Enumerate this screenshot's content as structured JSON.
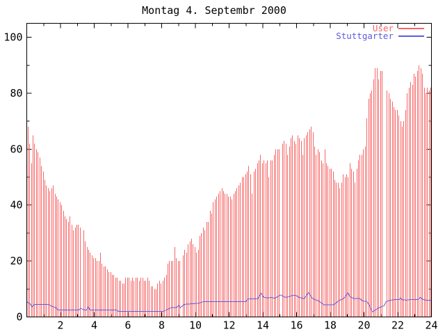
{
  "title": "Montag 4. Septembr 2000",
  "colors": {
    "background": "#ffffff",
    "axis": "#000000",
    "user_red": "#f56666",
    "stuttgarter_blue": "#5c5ce0"
  },
  "legend": {
    "items": [
      {
        "label": "User",
        "color": "#f56666"
      },
      {
        "label": "Stuttgarter",
        "color": "#5c5ce0"
      }
    ]
  },
  "chart_data": {
    "type": "bar",
    "title": "Montag 4. Septembr 2000",
    "xlabel": "",
    "ylabel": "",
    "xlim": [
      0,
      24
    ],
    "ylim": [
      0,
      105
    ],
    "xticks_major": [
      2,
      4,
      6,
      8,
      10,
      12,
      14,
      16,
      18,
      20,
      22,
      24
    ],
    "xticks_minor_step": 1,
    "yticks_major": [
      0,
      20,
      40,
      60,
      80,
      100
    ],
    "yticks_minor_step": 10,
    "grid": false,
    "legend_position": "top-right-inside",
    "series": [
      {
        "name": "User",
        "type": "impulses",
        "color": "#f56666",
        "start_hour": 0.05,
        "step_hours": 0.1,
        "values": [
          68,
          62,
          55,
          65,
          62,
          60,
          59,
          57,
          54,
          52,
          49,
          47,
          46,
          45,
          46,
          47,
          44,
          43,
          42,
          41,
          40,
          38,
          36,
          35,
          34,
          36,
          33,
          31,
          32,
          33,
          33,
          32,
          null,
          31,
          27,
          25,
          24,
          23,
          22,
          21,
          21,
          20,
          20,
          23,
          19,
          18,
          18,
          17,
          16,
          16,
          15,
          15,
          14,
          14,
          13,
          13,
          12,
          12,
          14,
          14,
          14,
          13,
          14,
          13,
          14,
          14,
          13,
          14,
          14,
          13,
          13,
          14,
          13,
          11,
          11,
          10,
          10,
          12,
          13,
          12,
          13,
          14,
          15,
          19,
          20,
          20,
          20,
          25,
          21,
          20,
          20,
          null,
          22,
          24,
          23,
          26,
          27,
          28,
          26,
          25,
          23,
          24,
          29,
          30,
          32,
          31,
          34,
          34,
          38,
          37,
          41,
          42,
          43,
          44,
          45,
          46,
          45,
          44,
          44,
          43,
          43,
          42,
          44,
          45,
          46,
          47,
          48,
          50,
          50,
          51,
          52,
          54,
          51,
          44,
          52,
          53,
          55,
          56,
          58,
          55,
          56,
          55,
          56,
          50,
          56,
          56,
          58,
          60,
          60,
          60,
          null,
          62,
          63,
          62,
          58,
          61,
          64,
          65,
          63,
          62,
          65,
          64,
          63,
          58,
          64,
          65,
          66,
          67,
          68,
          66,
          61,
          58,
          60,
          59,
          56,
          55,
          60,
          55,
          54,
          53,
          53,
          52,
          49,
          48,
          48,
          46,
          48,
          51,
          50,
          51,
          50,
          55,
          53,
          52,
          48,
          53,
          56,
          58,
          58,
          60,
          61,
          71,
          78,
          80,
          81,
          85,
          89,
          89,
          85,
          88,
          88,
          null,
          null,
          81,
          80,
          78,
          77,
          75,
          74,
          74,
          72,
          70,
          68,
          70,
          74,
          80,
          82,
          84,
          83,
          87,
          86,
          88,
          90,
          89,
          87,
          82,
          80,
          82,
          81,
          82
        ]
      },
      {
        "name": "Stuttgarter",
        "type": "line",
        "color": "#5c5ce0",
        "points": [
          [
            0,
            5.4
          ],
          [
            0.2,
            4.7
          ],
          [
            0.3,
            3.6
          ],
          [
            0.45,
            4.5
          ],
          [
            1.3,
            4.5
          ],
          [
            1.45,
            3.9
          ],
          [
            1.7,
            3.4
          ],
          [
            1.85,
            2.5
          ],
          [
            3.1,
            2.5
          ],
          [
            3.2,
            3.1
          ],
          [
            3.35,
            2.6
          ],
          [
            3.55,
            2.5
          ],
          [
            3.65,
            3.6
          ],
          [
            3.75,
            2.5
          ],
          [
            5.3,
            2.5
          ],
          [
            5.45,
            2.0
          ],
          [
            8.1,
            2.0
          ],
          [
            8.3,
            2.6
          ],
          [
            8.6,
            3.4
          ],
          [
            8.9,
            3.4
          ],
          [
            9.0,
            4.2
          ],
          [
            9.1,
            3.3
          ],
          [
            9.35,
            4.5
          ],
          [
            9.8,
            4.7
          ],
          [
            10.2,
            4.9
          ],
          [
            10.5,
            5.5
          ],
          [
            13.0,
            5.5
          ],
          [
            13.1,
            6.4
          ],
          [
            13.7,
            6.5
          ],
          [
            13.9,
            8.5
          ],
          [
            14.05,
            7.0
          ],
          [
            14.3,
            6.8
          ],
          [
            14.5,
            7.0
          ],
          [
            14.7,
            6.7
          ],
          [
            14.9,
            7.3
          ],
          [
            15.05,
            7.9
          ],
          [
            15.2,
            7.4
          ],
          [
            15.35,
            7.0
          ],
          [
            15.55,
            7.3
          ],
          [
            15.8,
            7.8
          ],
          [
            16.0,
            7.6
          ],
          [
            16.15,
            7.0
          ],
          [
            16.45,
            6.5
          ],
          [
            16.7,
            8.7
          ],
          [
            16.85,
            7.4
          ],
          [
            16.95,
            6.6
          ],
          [
            17.1,
            6.2
          ],
          [
            17.3,
            5.8
          ],
          [
            17.6,
            4.4
          ],
          [
            18.2,
            4.4
          ],
          [
            18.35,
            5.0
          ],
          [
            18.5,
            5.8
          ],
          [
            18.65,
            6.2
          ],
          [
            18.8,
            6.6
          ],
          [
            18.9,
            7.4
          ],
          [
            19.05,
            8.7
          ],
          [
            19.15,
            7.4
          ],
          [
            19.25,
            7.0
          ],
          [
            19.4,
            6.6
          ],
          [
            19.75,
            6.6
          ],
          [
            19.85,
            6.0
          ],
          [
            20.0,
            5.6
          ],
          [
            20.15,
            5.6
          ],
          [
            20.3,
            4.4
          ],
          [
            20.4,
            3.0
          ],
          [
            20.5,
            1.8
          ],
          [
            20.65,
            2.4
          ],
          [
            20.8,
            3.0
          ],
          [
            21.0,
            3.6
          ],
          [
            21.2,
            4.0
          ],
          [
            21.3,
            5.4
          ],
          [
            21.45,
            5.8
          ],
          [
            21.6,
            6.0
          ],
          [
            21.8,
            6.2
          ],
          [
            22.1,
            6.2
          ],
          [
            22.15,
            6.8
          ],
          [
            22.25,
            6.2
          ],
          [
            22.5,
            6.0
          ],
          [
            22.7,
            6.2
          ],
          [
            23.2,
            6.2
          ],
          [
            23.35,
            7.0
          ],
          [
            23.5,
            6.2
          ],
          [
            23.7,
            6.0
          ],
          [
            24.0,
            6.0
          ]
        ]
      }
    ]
  }
}
